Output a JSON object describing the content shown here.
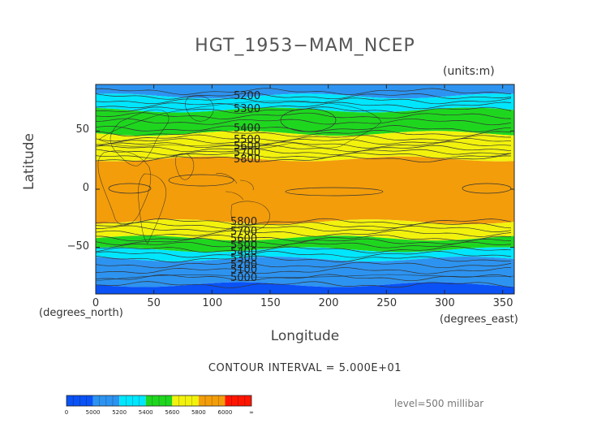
{
  "title": "HGT_1953−MAM_NCEP",
  "units": "(units:m)",
  "ylabel": "Latitude",
  "xlabel": "Longitude",
  "x_unit": "(degrees_east)",
  "y_unit": "(degrees_north)",
  "contour_interval": "CONTOUR INTERVAL = 5.000E+01",
  "level": "level=500 millibar",
  "axes": {
    "x_ticks": [
      "0",
      "50",
      "100",
      "150",
      "200",
      "250",
      "300",
      "350"
    ],
    "x_tick_values": [
      0,
      50,
      100,
      150,
      200,
      250,
      300,
      350
    ],
    "xlim": [
      0,
      360
    ],
    "y_ticks": [
      "50",
      "0",
      "−50"
    ],
    "y_tick_values": [
      50,
      0,
      -50
    ],
    "ylim": [
      -90,
      90
    ]
  },
  "contour_labels_north": [
    "5200",
    "5300",
    "5400",
    "5500",
    "5600",
    "5700",
    "5800"
  ],
  "contour_labels_south": [
    "5800",
    "5700",
    "5600",
    "5500",
    "5400",
    "5300",
    "5200",
    "5100",
    "5000"
  ],
  "colorbar": {
    "labels": [
      "0",
      "5000",
      "5200",
      "5400",
      "5600",
      "5800",
      "6000",
      "∞"
    ],
    "colors": [
      "#0a52f5",
      "#2d93f0",
      "#00e6ff",
      "#1fd61f",
      "#f2f20d",
      "#f39d0b",
      "#ff1500"
    ]
  },
  "field_bands": [
    {
      "lat_from": 90,
      "lat_to": 80,
      "color": "#2d93f0"
    },
    {
      "lat_from": 80,
      "lat_to": 68,
      "color": "#00e6ff"
    },
    {
      "lat_from": 68,
      "lat_to": 48,
      "color": "#1fd61f"
    },
    {
      "lat_from": 48,
      "lat_to": 26,
      "color": "#f2f20d"
    },
    {
      "lat_from": 26,
      "lat_to": -28,
      "color": "#f39d0b"
    },
    {
      "lat_from": -28,
      "lat_to": -42,
      "color": "#f2f20d"
    },
    {
      "lat_from": -42,
      "lat_to": -52,
      "color": "#1fd61f"
    },
    {
      "lat_from": -52,
      "lat_to": -60,
      "color": "#00e6ff"
    },
    {
      "lat_from": -60,
      "lat_to": -82,
      "color": "#2d93f0"
    },
    {
      "lat_from": -82,
      "lat_to": -90,
      "color": "#0a52f5"
    }
  ]
}
